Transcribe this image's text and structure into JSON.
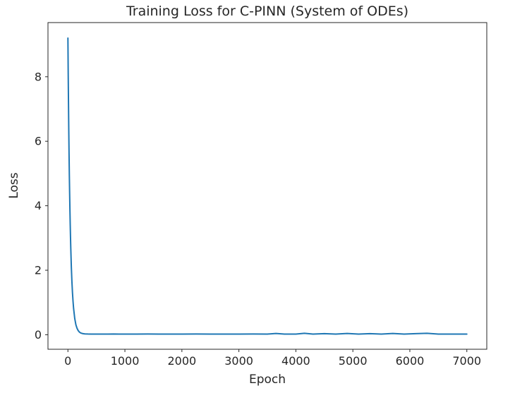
{
  "figure": {
    "background": "#ffffff",
    "spine_color": "#262626",
    "text_color": "#262626"
  },
  "chart_data": {
    "type": "line",
    "title": "Training Loss for C-PINN (System of ODEs)",
    "xlabel": "Epoch",
    "ylabel": "Loss",
    "xlim": [
      -350,
      7350
    ],
    "ylim": [
      -0.45,
      9.68
    ],
    "x_ticks": [
      0,
      1000,
      2000,
      3000,
      4000,
      5000,
      6000,
      7000
    ],
    "y_ticks": [
      0,
      2,
      4,
      6,
      8
    ],
    "grid": false,
    "legend": "none",
    "line_color": "#1f77b4",
    "line_width": 2,
    "series": [
      {
        "name": "training-loss",
        "points": [
          [
            0,
            9.2
          ],
          [
            5,
            8.1
          ],
          [
            10,
            7.2
          ],
          [
            15,
            6.35
          ],
          [
            20,
            5.6
          ],
          [
            25,
            4.95
          ],
          [
            30,
            4.4
          ],
          [
            35,
            3.9
          ],
          [
            40,
            3.45
          ],
          [
            45,
            3.05
          ],
          [
            50,
            2.7
          ],
          [
            60,
            2.1
          ],
          [
            70,
            1.65
          ],
          [
            80,
            1.3
          ],
          [
            90,
            1.03
          ],
          [
            100,
            0.81
          ],
          [
            120,
            0.5
          ],
          [
            140,
            0.31
          ],
          [
            160,
            0.2
          ],
          [
            180,
            0.13
          ],
          [
            200,
            0.085
          ],
          [
            225,
            0.055
          ],
          [
            250,
            0.04
          ],
          [
            275,
            0.032
          ],
          [
            300,
            0.027
          ],
          [
            350,
            0.023
          ],
          [
            400,
            0.021
          ],
          [
            450,
            0.02
          ],
          [
            500,
            0.02
          ],
          [
            600,
            0.021
          ],
          [
            700,
            0.02
          ],
          [
            800,
            0.022
          ],
          [
            900,
            0.02
          ],
          [
            1000,
            0.021
          ],
          [
            1200,
            0.02
          ],
          [
            1400,
            0.022
          ],
          [
            1600,
            0.02
          ],
          [
            1800,
            0.021
          ],
          [
            2000,
            0.02
          ],
          [
            2250,
            0.022
          ],
          [
            2500,
            0.02
          ],
          [
            2750,
            0.021
          ],
          [
            3000,
            0.02
          ],
          [
            3250,
            0.022
          ],
          [
            3500,
            0.02
          ],
          [
            3650,
            0.04
          ],
          [
            3800,
            0.02
          ],
          [
            4000,
            0.021
          ],
          [
            4150,
            0.045
          ],
          [
            4300,
            0.02
          ],
          [
            4500,
            0.035
          ],
          [
            4700,
            0.02
          ],
          [
            4900,
            0.04
          ],
          [
            5100,
            0.02
          ],
          [
            5300,
            0.035
          ],
          [
            5500,
            0.02
          ],
          [
            5700,
            0.04
          ],
          [
            5900,
            0.02
          ],
          [
            6100,
            0.035
          ],
          [
            6300,
            0.045
          ],
          [
            6500,
            0.02
          ],
          [
            6750,
            0.021
          ],
          [
            7000,
            0.02
          ]
        ]
      }
    ]
  }
}
